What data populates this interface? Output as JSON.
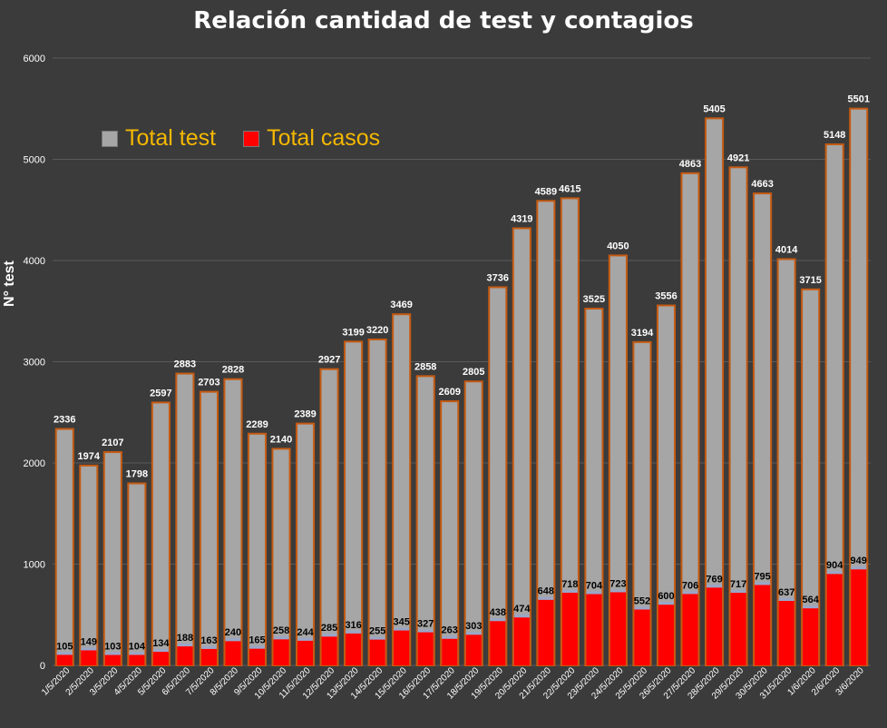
{
  "chart_data": {
    "type": "bar",
    "title": "Relación cantidad de test y contagios",
    "xlabel": "",
    "ylabel": "N° test",
    "ylim": [
      0,
      6000
    ],
    "yticks": [
      0,
      1000,
      2000,
      3000,
      4000,
      5000,
      6000
    ],
    "grid": true,
    "legend_position": "top-left",
    "categories": [
      "1/5/2020",
      "2/5/2020",
      "3/5/2020",
      "4/5/2020",
      "5/5/2020",
      "6/5/2020",
      "7/5/2020",
      "8/5/2020",
      "9/5/2020",
      "10/5/2020",
      "11/5/2020",
      "12/5/2020",
      "13/5/2020",
      "14/5/2020",
      "15/5/2020",
      "16/5/2020",
      "17/5/2020",
      "18/5/2020",
      "19/5/2020",
      "20/5/2020",
      "21/5/2020",
      "22/5/2020",
      "23/5/2020",
      "24/5/2020",
      "25/5/2020",
      "26/5/2020",
      "27/5/2020",
      "28/5/2020",
      "29/5/2020",
      "30/5/2020",
      "31/5/2020",
      "1/6/2020",
      "2/6/2020",
      "3/6/2020"
    ],
    "series": [
      {
        "name": "Total test",
        "color": "#a6a6a6",
        "values": [
          2336,
          1974,
          2107,
          1798,
          2597,
          2883,
          2703,
          2828,
          2289,
          2140,
          2389,
          2927,
          3199,
          3220,
          3469,
          2858,
          2609,
          2805,
          3736,
          4319,
          4589,
          4615,
          3525,
          4050,
          3194,
          3556,
          4863,
          5405,
          4921,
          4663,
          4014,
          3715,
          5148,
          5501
        ]
      },
      {
        "name": "Total casos",
        "color": "#ff0000",
        "values": [
          105,
          149,
          103,
          104,
          134,
          188,
          163,
          240,
          165,
          258,
          244,
          285,
          316,
          255,
          345,
          327,
          263,
          303,
          438,
          474,
          648,
          718,
          704,
          723,
          552,
          600,
          706,
          769,
          717,
          795,
          637,
          564,
          904,
          949
        ]
      }
    ]
  },
  "colors": {
    "background": "#3b3b3b",
    "legend_text": "#f5b800",
    "bar_outline": "#c55a11"
  }
}
